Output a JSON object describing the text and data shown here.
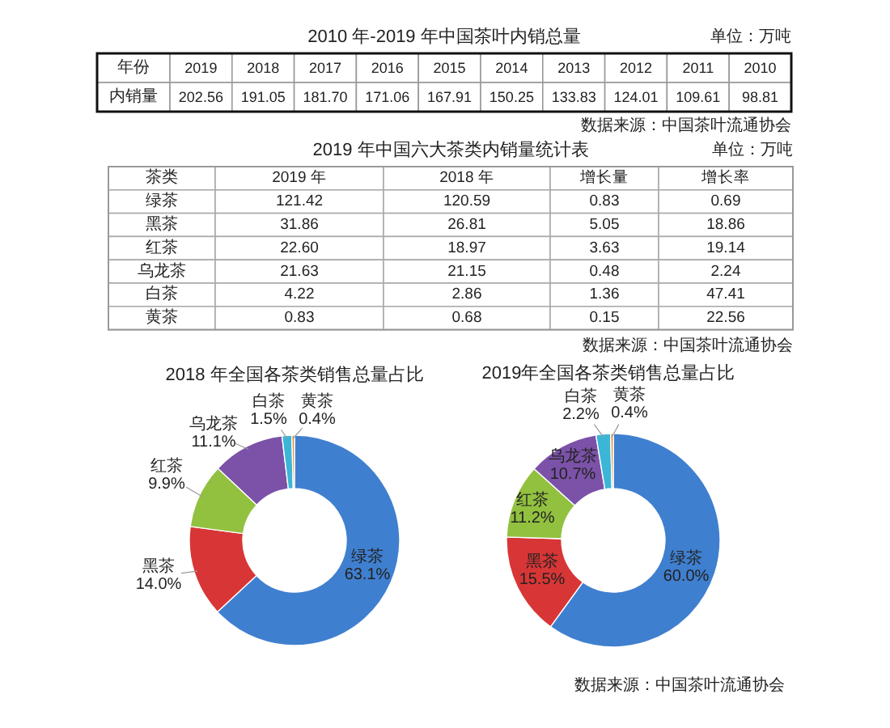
{
  "chart_data": [
    {
      "type": "heatmap",
      "title": "2010 年-2019 年中国茶叶内销总量",
      "xlabel": "年份",
      "categories": [
        "2019",
        "2018",
        "2017",
        "2016",
        "2015",
        "2014",
        "2013",
        "2012",
        "2011",
        "2010"
      ],
      "y_categories": [
        "内销量"
      ],
      "cells": [
        [
          202.56,
          191.05,
          181.7,
          171.06,
          167.91,
          150.25,
          133.83,
          124.01,
          109.61,
          98.81
        ]
      ],
      "cell_labels": [
        [
          "202.56",
          "191.05",
          "181.70",
          "171.06",
          "167.91",
          "150.25",
          "133.83",
          "124.01",
          "109.61",
          "98.81"
        ]
      ],
      "annotations": [
        "单位：万吨",
        "数据来源：中国茶叶流通协会"
      ]
    },
    {
      "type": "heatmap",
      "title": "2019 年中国六大茶类内销量统计表",
      "ylabel": "茶类",
      "categories": [
        "2019 年",
        "2018 年",
        "增长量",
        "增长率"
      ],
      "y_categories": [
        "绿茶",
        "黑茶",
        "红茶",
        "乌龙茶",
        "白茶",
        "黄茶"
      ],
      "cells": [
        [
          121.42,
          120.59,
          0.83,
          0.69
        ],
        [
          31.86,
          26.81,
          5.05,
          18.86
        ],
        [
          22.6,
          18.97,
          3.63,
          19.14
        ],
        [
          21.63,
          21.15,
          0.48,
          2.24
        ],
        [
          4.22,
          2.86,
          1.36,
          47.41
        ],
        [
          0.83,
          0.68,
          0.15,
          22.56
        ]
      ],
      "cell_labels": [
        [
          "121.42",
          "120.59",
          "0.83",
          "0.69"
        ],
        [
          "31.86",
          "26.81",
          "5.05",
          "18.86"
        ],
        [
          "22.60",
          "18.97",
          "3.63",
          "19.14"
        ],
        [
          "21.63",
          "21.15",
          "0.48",
          "2.24"
        ],
        [
          "4.22",
          "2.86",
          "1.36",
          "47.41"
        ],
        [
          "0.83",
          "0.68",
          "0.15",
          "22.56"
        ]
      ],
      "annotations": [
        "单位：万吨",
        "数据来源：中国茶叶流通协会"
      ]
    },
    {
      "type": "donut",
      "title": "2018 年全国各茶类销售总量占比",
      "categories": [
        "绿茶",
        "黑茶",
        "红茶",
        "乌龙茶",
        "白茶",
        "黄茶"
      ],
      "values": [
        63.1,
        14.0,
        9.9,
        11.1,
        1.5,
        0.4
      ],
      "value_labels": [
        "63.1%",
        "14.0%",
        "9.9%",
        "11.1%",
        "1.5%",
        "0.4%"
      ],
      "colors": [
        "#3f7fcf",
        "#d83636",
        "#92c140",
        "#7b52a8",
        "#3cb6d6",
        "#e8913a"
      ]
    },
    {
      "type": "donut",
      "title": "2019年全国各茶类销售总量占比",
      "categories": [
        "绿茶",
        "黑茶",
        "红茶",
        "乌龙茶",
        "白茶",
        "黄茶"
      ],
      "values": [
        60.0,
        15.5,
        11.2,
        10.7,
        2.2,
        0.4
      ],
      "value_labels": [
        "60.0%",
        "15.5%",
        "11.2%",
        "10.7%",
        "2.2%",
        "0.4%"
      ],
      "colors": [
        "#3f7fcf",
        "#d83636",
        "#92c140",
        "#7b52a8",
        "#3cb6d6",
        "#e8913a"
      ],
      "annotations": [
        "数据来源：中国茶叶流通协会"
      ]
    }
  ]
}
